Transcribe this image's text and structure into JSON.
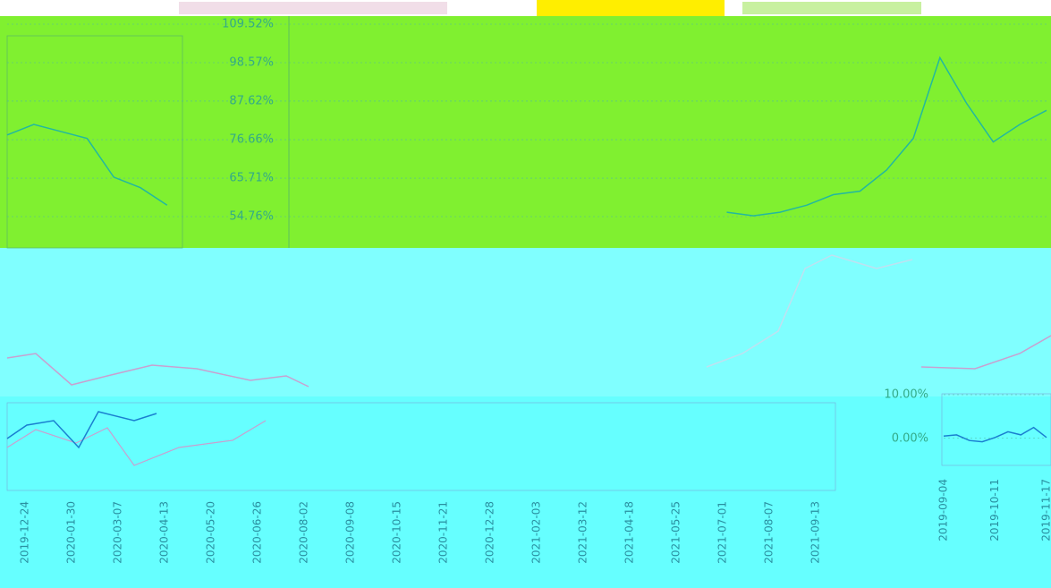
{
  "chart_data": [
    {
      "type": "line",
      "values": [
        78,
        81,
        79,
        77,
        66,
        63,
        58,
        null,
        null,
        null,
        null,
        null,
        null,
        null,
        null,
        null,
        null,
        null,
        null,
        null,
        null,
        null,
        null,
        null,
        null,
        null,
        null,
        56,
        55,
        56,
        58,
        61,
        62,
        68,
        77,
        100,
        87,
        76,
        81,
        85
      ],
      "color": "#22b8a0",
      "ylim": [
        43.81,
        109.52
      ],
      "yticks": [
        {
          "value": 109.52,
          "label": "109.52%"
        },
        {
          "value": 98.57,
          "label": "98.57%"
        },
        {
          "value": 87.62,
          "label": "87.62%"
        },
        {
          "value": 76.66,
          "label": "76.66%"
        },
        {
          "value": 65.71,
          "label": "65.71%"
        },
        {
          "value": 54.76,
          "label": "54.76%"
        }
      ],
      "grid": true
    },
    {
      "type": "line",
      "categories": [
        "2019-09-04",
        null,
        null,
        null,
        "2019-10-11",
        null,
        null,
        null,
        "2019-11-17"
      ],
      "values": [
        0.5,
        0.8,
        -0.5,
        -0.8,
        0.2,
        1.5,
        0.8,
        2.5,
        0.2
      ],
      "color": "#1a7fd0",
      "ylim": [
        -6,
        10
      ],
      "yticks": [
        {
          "value": 0,
          "label": "0.00%"
        },
        {
          "value": 10,
          "label": "10.00%"
        }
      ],
      "grid": true
    }
  ],
  "date_axis": [
    "2019-12-24",
    "2020-01-30",
    "2020-03-07",
    "2020-04-13",
    "2020-05-20",
    "2020-06-26",
    "2020-08-02",
    "2020-09-08",
    "2020-10-15",
    "2020-11-21",
    "2020-12-28",
    "2021-02-03",
    "2021-03-12",
    "2021-04-18",
    "2021-05-25",
    "2021-07-01",
    "2021-08-07",
    "2021-09-13"
  ]
}
